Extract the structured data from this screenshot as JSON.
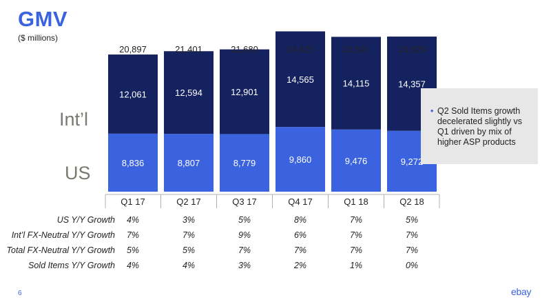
{
  "title": "GMV",
  "subtitle": "($ millions)",
  "segment_labels": {
    "intl": "Int’l",
    "us": "US"
  },
  "colors": {
    "intl": "#152260",
    "us": "#3b63e0",
    "title": "#3b63e0",
    "callout_bg": "#e7e7e7"
  },
  "chart_data": {
    "type": "bar",
    "stacked": true,
    "categories": [
      "Q1 17",
      "Q2 17",
      "Q3 17",
      "Q4 17",
      "Q1 18",
      "Q2 18"
    ],
    "series": [
      {
        "name": "US",
        "values": [
          8836,
          8807,
          8779,
          9860,
          9476,
          9272
        ],
        "labels": [
          "8,836",
          "8,807",
          "8,779",
          "9,860",
          "9,476",
          "9,272"
        ]
      },
      {
        "name": "Int’l",
        "values": [
          12061,
          12594,
          12901,
          14565,
          14115,
          14357
        ],
        "labels": [
          "12,061",
          "12,594",
          "12,901",
          "14,565",
          "14,115",
          "14,357"
        ]
      }
    ],
    "totals": [
      20897,
      21401,
      21680,
      24425,
      23591,
      23629
    ],
    "total_labels": [
      "20,897",
      "21,401",
      "21,680",
      "24,425",
      "23,591",
      "23,629"
    ],
    "ylim": [
      0,
      25000
    ],
    "grid": false,
    "legend": "none"
  },
  "callout": {
    "text": "Q2 Sold Items growth decelerated slightly vs Q1 driven by mix of higher ASP products"
  },
  "growth_table": {
    "rows": [
      {
        "label": "US Y/Y Growth",
        "values": [
          "4%",
          "3%",
          "5%",
          "8%",
          "7%",
          "5%"
        ]
      },
      {
        "label": "Int’l FX-Neutral Y/Y Growth",
        "values": [
          "7%",
          "7%",
          "9%",
          "6%",
          "7%",
          "7%"
        ]
      },
      {
        "label": "Total FX-Neutral Y/Y Growth",
        "values": [
          "5%",
          "5%",
          "7%",
          "7%",
          "7%",
          "7%"
        ]
      },
      {
        "label": "Sold Items Y/Y Growth",
        "values": [
          "4%",
          "4%",
          "3%",
          "2%",
          "1%",
          "0%"
        ]
      }
    ]
  },
  "footer": {
    "page_number": "6",
    "logo_text": "ebay"
  }
}
